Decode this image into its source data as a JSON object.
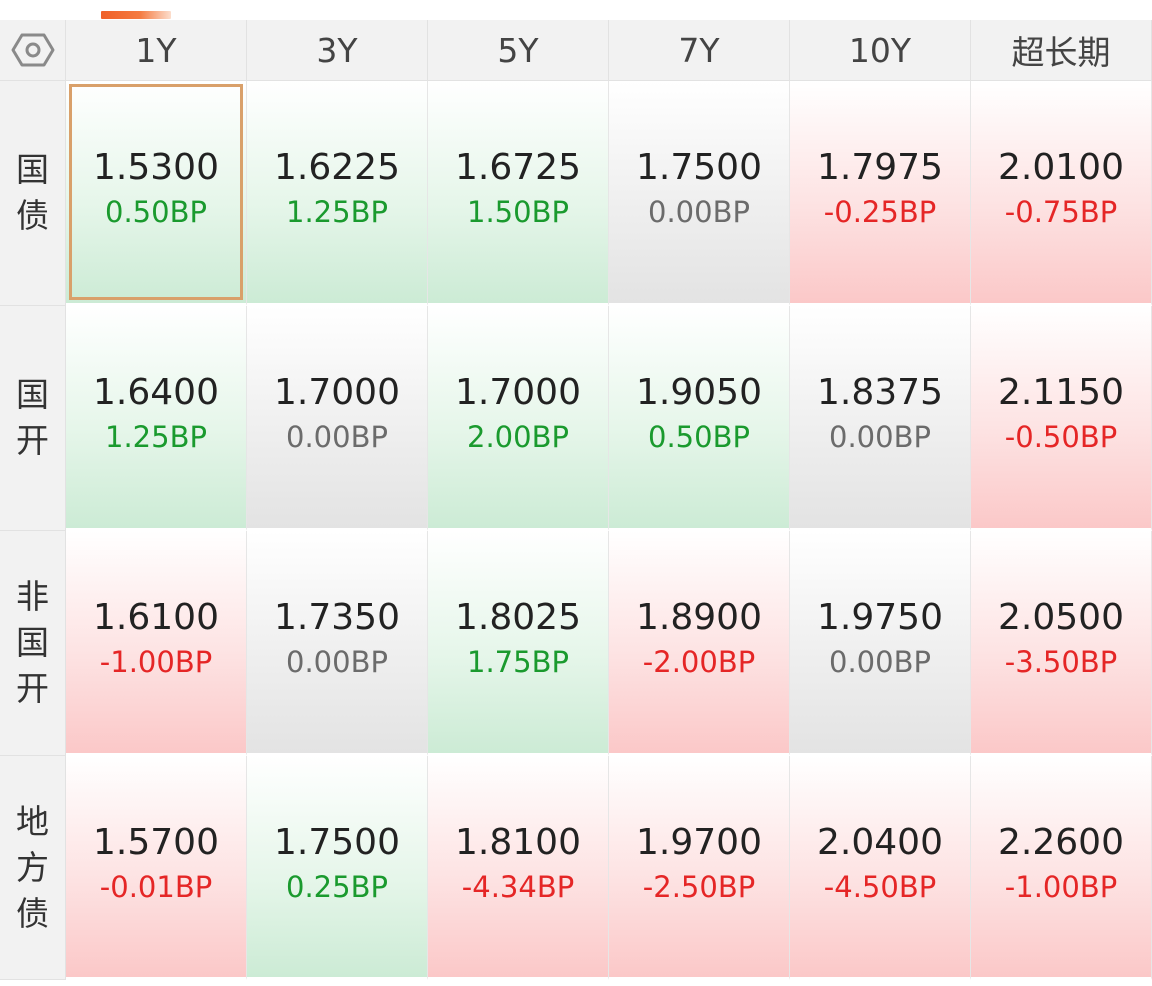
{
  "colors": {
    "positive_change": "#1a9a2e",
    "negative_change": "#e52626",
    "no_change": "#6b6b6b",
    "accent": "#f06028",
    "selected_border": "#d9a06a"
  },
  "settings_icon": "hexagon-settings-icon",
  "columns": [
    "1Y",
    "3Y",
    "5Y",
    "7Y",
    "10Y",
    "超长期"
  ],
  "rows": [
    {
      "label": "国债",
      "cells": [
        {
          "yield": "1.5300",
          "change": "0.50BP",
          "direction": "down",
          "selected": true
        },
        {
          "yield": "1.6225",
          "change": "1.25BP",
          "direction": "down"
        },
        {
          "yield": "1.6725",
          "change": "1.50BP",
          "direction": "down"
        },
        {
          "yield": "1.7500",
          "change": "0.00BP",
          "direction": "flat"
        },
        {
          "yield": "1.7975",
          "change": "-0.25BP",
          "direction": "up"
        },
        {
          "yield": "2.0100",
          "change": "-0.75BP",
          "direction": "up"
        }
      ]
    },
    {
      "label": "国开",
      "cells": [
        {
          "yield": "1.6400",
          "change": "1.25BP",
          "direction": "down"
        },
        {
          "yield": "1.7000",
          "change": "0.00BP",
          "direction": "flat"
        },
        {
          "yield": "1.7000",
          "change": "2.00BP",
          "direction": "down"
        },
        {
          "yield": "1.9050",
          "change": "0.50BP",
          "direction": "down"
        },
        {
          "yield": "1.8375",
          "change": "0.00BP",
          "direction": "flat"
        },
        {
          "yield": "2.1150",
          "change": "-0.50BP",
          "direction": "up"
        }
      ]
    },
    {
      "label": "非国开",
      "cells": [
        {
          "yield": "1.6100",
          "change": "-1.00BP",
          "direction": "up"
        },
        {
          "yield": "1.7350",
          "change": "0.00BP",
          "direction": "flat"
        },
        {
          "yield": "1.8025",
          "change": "1.75BP",
          "direction": "down"
        },
        {
          "yield": "1.8900",
          "change": "-2.00BP",
          "direction": "up"
        },
        {
          "yield": "1.9750",
          "change": "0.00BP",
          "direction": "flat"
        },
        {
          "yield": "2.0500",
          "change": "-3.50BP",
          "direction": "up"
        }
      ]
    },
    {
      "label": "地方债",
      "cells": [
        {
          "yield": "1.5700",
          "change": "-0.01BP",
          "direction": "up"
        },
        {
          "yield": "1.7500",
          "change": "0.25BP",
          "direction": "down"
        },
        {
          "yield": "1.8100",
          "change": "-4.34BP",
          "direction": "up"
        },
        {
          "yield": "1.9700",
          "change": "-2.50BP",
          "direction": "up"
        },
        {
          "yield": "2.0400",
          "change": "-4.50BP",
          "direction": "up"
        },
        {
          "yield": "2.2600",
          "change": "-1.00BP",
          "direction": "up"
        }
      ]
    }
  ]
}
